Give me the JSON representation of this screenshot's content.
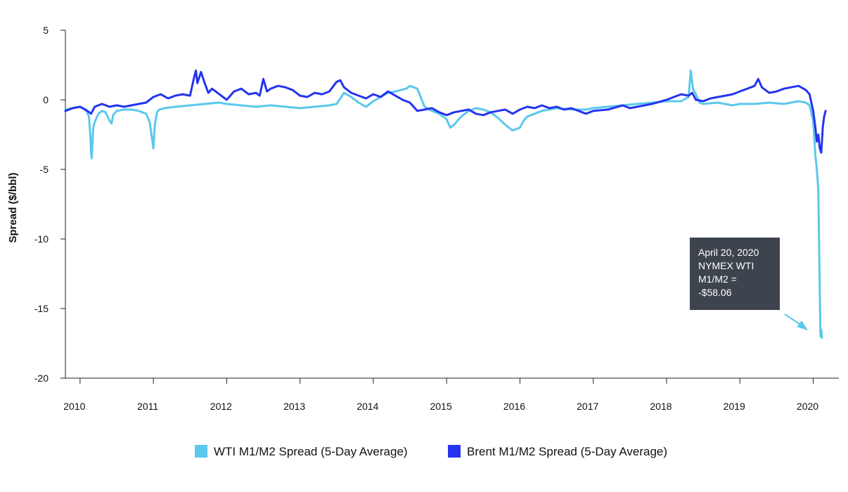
{
  "chart_data": {
    "type": "line",
    "title": "",
    "xlabel": "",
    "ylabel": "Spread ($/bbl)",
    "ylim": [
      -20,
      5
    ],
    "xlim": [
      2009.8,
      2020.35
    ],
    "y_ticks": [
      5,
      0,
      -5,
      -10,
      -15,
      -20
    ],
    "y_tick_labels": [
      "5",
      "0",
      "-5",
      "-10",
      "-15",
      "-20"
    ],
    "x_ticks": [
      2010,
      2011,
      2012,
      2013,
      2014,
      2015,
      2016,
      2017,
      2018,
      2019,
      2020
    ],
    "x_tick_labels": [
      "2010",
      "2011",
      "2012",
      "2013",
      "2014",
      "2015",
      "2016",
      "2017",
      "2018",
      "2019",
      "2020"
    ],
    "grid": false,
    "legend_position": "bottom-center",
    "series": [
      {
        "name": "WTI M1/M2 Spread (5-Day Average)",
        "color": "#5bc8ec",
        "x": [
          2009.8,
          2009.9,
          2010.0,
          2010.08,
          2010.12,
          2010.14,
          2010.15,
          2010.16,
          2010.18,
          2010.2,
          2010.25,
          2010.3,
          2010.35,
          2010.4,
          2010.43,
          2010.45,
          2010.5,
          2010.6,
          2010.7,
          2010.8,
          2010.9,
          2010.95,
          2010.98,
          2011.0,
          2011.02,
          2011.05,
          2011.08,
          2011.15,
          2011.3,
          2011.5,
          2011.7,
          2011.9,
          2012.0,
          2012.2,
          2012.4,
          2012.6,
          2012.8,
          2013.0,
          2013.2,
          2013.4,
          2013.5,
          2013.6,
          2013.7,
          2013.8,
          2013.9,
          2014.0,
          2014.1,
          2014.2,
          2014.3,
          2014.45,
          2014.5,
          2014.6,
          2014.7,
          2014.8,
          2014.9,
          2015.0,
          2015.05,
          2015.1,
          2015.2,
          2015.3,
          2015.4,
          2015.5,
          2015.6,
          2015.7,
          2015.8,
          2015.9,
          2016.0,
          2016.05,
          2016.1,
          2016.2,
          2016.3,
          2016.5,
          2016.7,
          2016.9,
          2017.0,
          2017.2,
          2017.4,
          2017.6,
          2017.8,
          2018.0,
          2018.2,
          2018.3,
          2018.33,
          2018.36,
          2018.4,
          2018.45,
          2018.5,
          2018.7,
          2018.9,
          2019.0,
          2019.2,
          2019.4,
          2019.6,
          2019.8,
          2019.9,
          2019.95,
          2020.0,
          2020.03,
          2020.05,
          2020.07,
          2020.09,
          2020.1,
          2020.11,
          2020.12
        ],
        "y": [
          -0.7,
          -0.6,
          -0.5,
          -0.7,
          -1.2,
          -2.5,
          -3.8,
          -4.2,
          -2.0,
          -1.6,
          -1.0,
          -0.8,
          -0.9,
          -1.5,
          -1.7,
          -1.1,
          -0.8,
          -0.7,
          -0.7,
          -0.8,
          -1.0,
          -1.6,
          -2.7,
          -3.5,
          -1.8,
          -0.9,
          -0.7,
          -0.6,
          -0.5,
          -0.4,
          -0.3,
          -0.2,
          -0.3,
          -0.4,
          -0.5,
          -0.4,
          -0.5,
          -0.6,
          -0.5,
          -0.4,
          -0.3,
          0.5,
          0.2,
          -0.2,
          -0.5,
          -0.1,
          0.2,
          0.5,
          0.6,
          0.8,
          1.0,
          0.8,
          -0.5,
          -0.8,
          -1.0,
          -1.4,
          -2.0,
          -1.8,
          -1.2,
          -0.8,
          -0.6,
          -0.7,
          -0.9,
          -1.3,
          -1.8,
          -2.2,
          -2.0,
          -1.5,
          -1.2,
          -1.0,
          -0.8,
          -0.6,
          -0.7,
          -0.7,
          -0.6,
          -0.5,
          -0.4,
          -0.3,
          -0.2,
          -0.1,
          -0.1,
          0.2,
          2.1,
          0.8,
          0.4,
          -0.2,
          -0.3,
          -0.2,
          -0.4,
          -0.3,
          -0.3,
          -0.2,
          -0.3,
          -0.1,
          -0.2,
          -0.4,
          -1.5,
          -4.0,
          -5.0,
          -6.5,
          -14.0,
          -17.0,
          -16.5,
          -17.1
        ]
      },
      {
        "name": "Brent M1/M2 Spread (5-Day Average)",
        "color": "#2434f0",
        "x": [
          2009.8,
          2009.9,
          2010.0,
          2010.1,
          2010.15,
          2010.2,
          2010.3,
          2010.4,
          2010.5,
          2010.6,
          2010.7,
          2010.8,
          2010.9,
          2011.0,
          2011.1,
          2011.2,
          2011.3,
          2011.4,
          2011.5,
          2011.55,
          2011.58,
          2011.6,
          2011.65,
          2011.7,
          2011.75,
          2011.8,
          2011.9,
          2012.0,
          2012.1,
          2012.2,
          2012.3,
          2012.4,
          2012.45,
          2012.5,
          2012.55,
          2012.6,
          2012.7,
          2012.8,
          2012.9,
          2013.0,
          2013.1,
          2013.2,
          2013.3,
          2013.4,
          2013.5,
          2013.55,
          2013.6,
          2013.7,
          2013.8,
          2013.9,
          2014.0,
          2014.1,
          2014.2,
          2014.3,
          2014.4,
          2014.5,
          2014.6,
          2014.7,
          2014.8,
          2014.9,
          2015.0,
          2015.1,
          2015.2,
          2015.3,
          2015.4,
          2015.5,
          2015.6,
          2015.7,
          2015.8,
          2015.9,
          2016.0,
          2016.1,
          2016.2,
          2016.3,
          2016.4,
          2016.5,
          2016.6,
          2016.7,
          2016.8,
          2016.9,
          2017.0,
          2017.2,
          2017.4,
          2017.5,
          2017.6,
          2017.8,
          2018.0,
          2018.1,
          2018.2,
          2018.3,
          2018.35,
          2018.4,
          2018.5,
          2018.6,
          2018.7,
          2018.8,
          2018.9,
          2019.0,
          2019.1,
          2019.2,
          2019.25,
          2019.3,
          2019.4,
          2019.5,
          2019.6,
          2019.7,
          2019.8,
          2019.9,
          2019.95,
          2020.0,
          2020.03,
          2020.05,
          2020.07,
          2020.09,
          2020.11,
          2020.13,
          2020.15,
          2020.17
        ],
        "y": [
          -0.8,
          -0.6,
          -0.5,
          -0.8,
          -1.0,
          -0.5,
          -0.3,
          -0.5,
          -0.4,
          -0.5,
          -0.4,
          -0.3,
          -0.2,
          0.2,
          0.4,
          0.1,
          0.3,
          0.4,
          0.3,
          1.5,
          2.1,
          1.2,
          2.0,
          1.2,
          0.5,
          0.8,
          0.4,
          0.0,
          0.6,
          0.8,
          0.4,
          0.5,
          0.3,
          1.5,
          0.6,
          0.8,
          1.0,
          0.9,
          0.7,
          0.3,
          0.2,
          0.5,
          0.4,
          0.6,
          1.3,
          1.4,
          0.9,
          0.5,
          0.3,
          0.1,
          0.4,
          0.2,
          0.6,
          0.3,
          0.0,
          -0.2,
          -0.8,
          -0.7,
          -0.6,
          -0.9,
          -1.1,
          -0.9,
          -0.8,
          -0.7,
          -1.0,
          -1.1,
          -0.9,
          -0.8,
          -0.7,
          -1.0,
          -0.7,
          -0.5,
          -0.6,
          -0.4,
          -0.6,
          -0.5,
          -0.7,
          -0.6,
          -0.8,
          -1.0,
          -0.8,
          -0.7,
          -0.4,
          -0.6,
          -0.5,
          -0.3,
          0.0,
          0.2,
          0.4,
          0.3,
          0.5,
          0.0,
          -0.1,
          0.1,
          0.2,
          0.3,
          0.4,
          0.6,
          0.8,
          1.0,
          1.5,
          0.9,
          0.5,
          0.6,
          0.8,
          0.9,
          1.0,
          0.7,
          0.4,
          -0.8,
          -2.0,
          -3.0,
          -2.5,
          -3.5,
          -3.8,
          -2.0,
          -1.2,
          -0.8
        ]
      }
    ],
    "annotation": {
      "lines": [
        "April 20, 2020",
        "NYMEX WTI",
        "M1/M2 =",
        "-$58.06"
      ],
      "box_color": "#3d444d",
      "arrow_color": "#5bc8ec"
    }
  }
}
